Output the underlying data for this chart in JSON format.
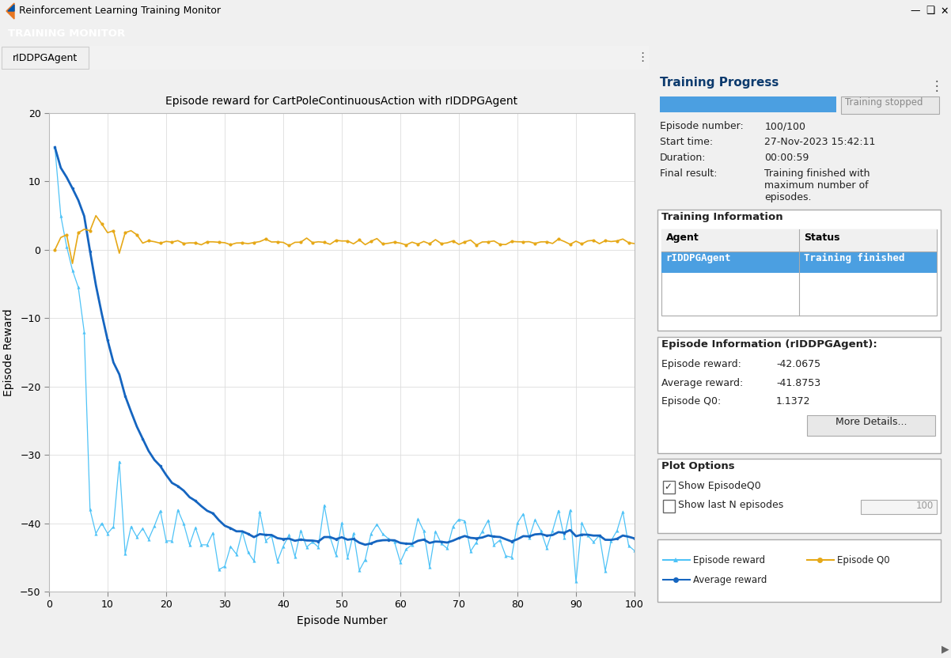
{
  "title": "Episode reward for CartPoleContinuousAction with rIDDPGAgent",
  "xlabel": "Episode Number",
  "ylabel": "Episode Reward",
  "xlim": [
    0,
    100
  ],
  "ylim": [
    -50,
    20
  ],
  "yticks": [
    -50,
    -40,
    -30,
    -20,
    -10,
    0,
    10,
    20
  ],
  "xticks": [
    0,
    10,
    20,
    30,
    40,
    50,
    60,
    70,
    80,
    90,
    100
  ],
  "window_title": "Reinforcement Learning Training Monitor",
  "tab_label": "rIDDPGAgent",
  "training_monitor_label": "TRAINING MONITOR",
  "progress_title": "Training Progress",
  "progress_bar_color": "#4B9FE1",
  "training_stopped_label": "Training stopped",
  "episode_number_label": "Episode number:",
  "episode_number_value": "100/100",
  "start_time_label": "Start time:",
  "start_time_value": "27-Nov-2023 15:42:11",
  "duration_label": "Duration:",
  "duration_value": "00:00:59",
  "final_result_label": "Final result:",
  "final_result_value": "Training finished with\nmaximum number of\nepisodes.",
  "training_info_title": "Training Information",
  "agent_col": "Agent",
  "status_col": "Status",
  "agent_name": "rIDDPGAgent",
  "agent_status": "Training finished",
  "episode_info_title": "Episode Information (rIDDPGAgent):",
  "ep_reward_label": "Episode reward:",
  "ep_reward_value": "-42.0675",
  "avg_reward_label": "Average reward:",
  "avg_reward_value": "-41.8753",
  "ep_q0_label": "Episode Q0:",
  "ep_q0_value": "1.1372",
  "more_details_label": "More Details...",
  "plot_options_title": "Plot Options",
  "show_episodeq0": "Show EpisodeQ0",
  "show_last_n": "Show last N episodes",
  "last_n_value": "100",
  "legend_ep_reward": "Episode reward",
  "legend_ep_q0": "Episode Q0",
  "legend_avg_reward": "Average reward",
  "ep_reward_color": "#4FC3F7",
  "avg_reward_color": "#1565C0",
  "ep_q0_color": "#E6A817",
  "header_bg": "#0D3B6E",
  "plot_area_bg": "#F2F2F2",
  "plot_bg": "#FFFFFF",
  "right_panel_bg": "#F0F0F0",
  "highlight_row_bg": "#4B9FE1",
  "highlight_row_fg": "#FFFFFF",
  "titlebar_bg": "#F0F0F0",
  "box_border": "#AAAAAA",
  "tab_bg": "#F0F0F0",
  "tab_bar_bg": "#E8E8E8"
}
